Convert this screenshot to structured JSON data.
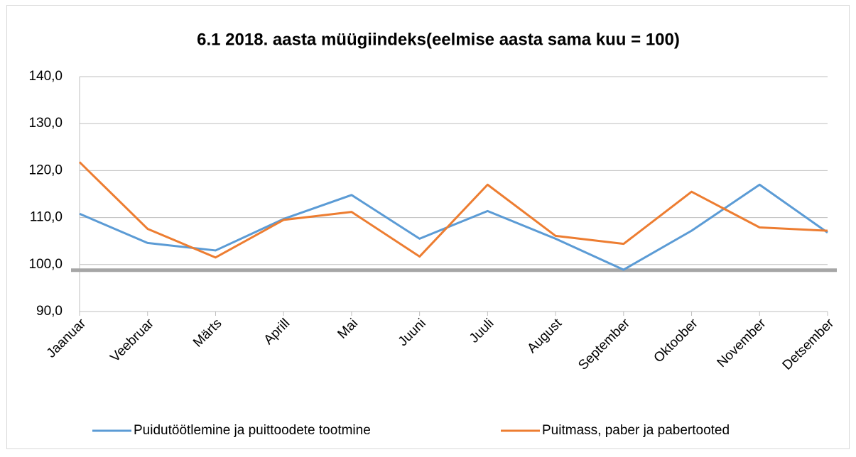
{
  "chart_data": {
    "type": "line",
    "title": "6.1 2018. aasta müügiindeks(eelmise aasta sama kuu = 100)",
    "categories": [
      "Jaanuar",
      "Veebruar",
      "Märts",
      "Aprill",
      "Mai",
      "Juuni",
      "Juuli",
      "August",
      "September",
      "Oktoober",
      "November",
      "Detsember"
    ],
    "series": [
      {
        "name": "Puidutöötlemine ja puittoodete tootmine",
        "color": "#5b9bd5",
        "values": [
          110.8,
          104.6,
          103.0,
          109.7,
          114.8,
          105.5,
          111.4,
          105.5,
          98.9,
          107.2,
          117.0,
          106.8
        ]
      },
      {
        "name": "Puitmass, paber ja pabertooted",
        "color": "#ed7d31",
        "values": [
          121.8,
          107.6,
          101.5,
          109.5,
          111.2,
          101.7,
          117.0,
          106.1,
          104.4,
          115.5,
          107.9,
          107.2
        ]
      }
    ],
    "reference_line": 98.8,
    "ylim": [
      90,
      140
    ],
    "yticks": [
      {
        "value": 90,
        "label": "90,0"
      },
      {
        "value": 100,
        "label": "100,0"
      },
      {
        "value": 110,
        "label": "110,0"
      },
      {
        "value": 120,
        "label": "120,0"
      },
      {
        "value": 130,
        "label": "130,0"
      },
      {
        "value": 140,
        "label": "140,0"
      }
    ],
    "grid": true,
    "legend": "bottom"
  }
}
